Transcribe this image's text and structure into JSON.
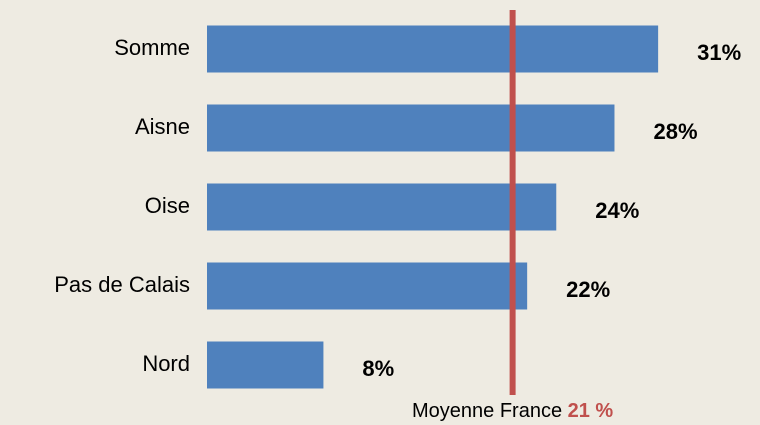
{
  "chart_data": {
    "type": "barh",
    "categories": [
      "Somme",
      "Aisne",
      "Oise",
      "Pas de Calais",
      "Nord"
    ],
    "values": [
      31,
      28,
      24,
      22,
      8
    ],
    "value_labels": [
      "31%",
      "28%",
      "24%",
      "22%",
      "8%"
    ],
    "color": "#4f81bd",
    "xlim": [
      0,
      38
    ],
    "reference_line": {
      "text": "Moyenne France",
      "value": 21,
      "label": "21 %",
      "color": "#c0504d"
    }
  }
}
